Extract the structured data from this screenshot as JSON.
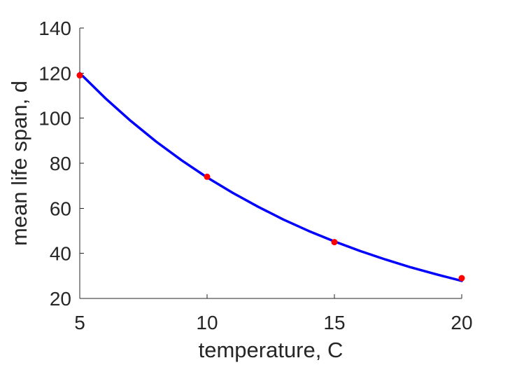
{
  "chart_data": {
    "type": "line",
    "title": "",
    "xlabel": "temperature, C",
    "ylabel": "mean life span, d",
    "xlim": [
      5,
      20
    ],
    "ylim": [
      20,
      140
    ],
    "xticks": [
      5,
      10,
      15,
      20
    ],
    "yticks": [
      20,
      40,
      60,
      80,
      100,
      120,
      140
    ],
    "grid": false,
    "legend": "none",
    "series": [
      {
        "kind": "line",
        "color": "#0000ff",
        "x": [
          5,
          6,
          7,
          8,
          9,
          10,
          11,
          12,
          13,
          14,
          15,
          16,
          17,
          18,
          19,
          20
        ],
        "y": [
          120.0,
          108.9,
          98.8,
          89.6,
          81.3,
          73.7,
          66.9,
          60.7,
          55.0,
          49.9,
          45.3,
          41.1,
          37.3,
          33.8,
          30.7,
          27.8
        ]
      },
      {
        "kind": "scatter",
        "color": "#ff0000",
        "x": [
          5,
          10,
          15,
          20
        ],
        "y": [
          119,
          74,
          45,
          29
        ]
      }
    ]
  }
}
